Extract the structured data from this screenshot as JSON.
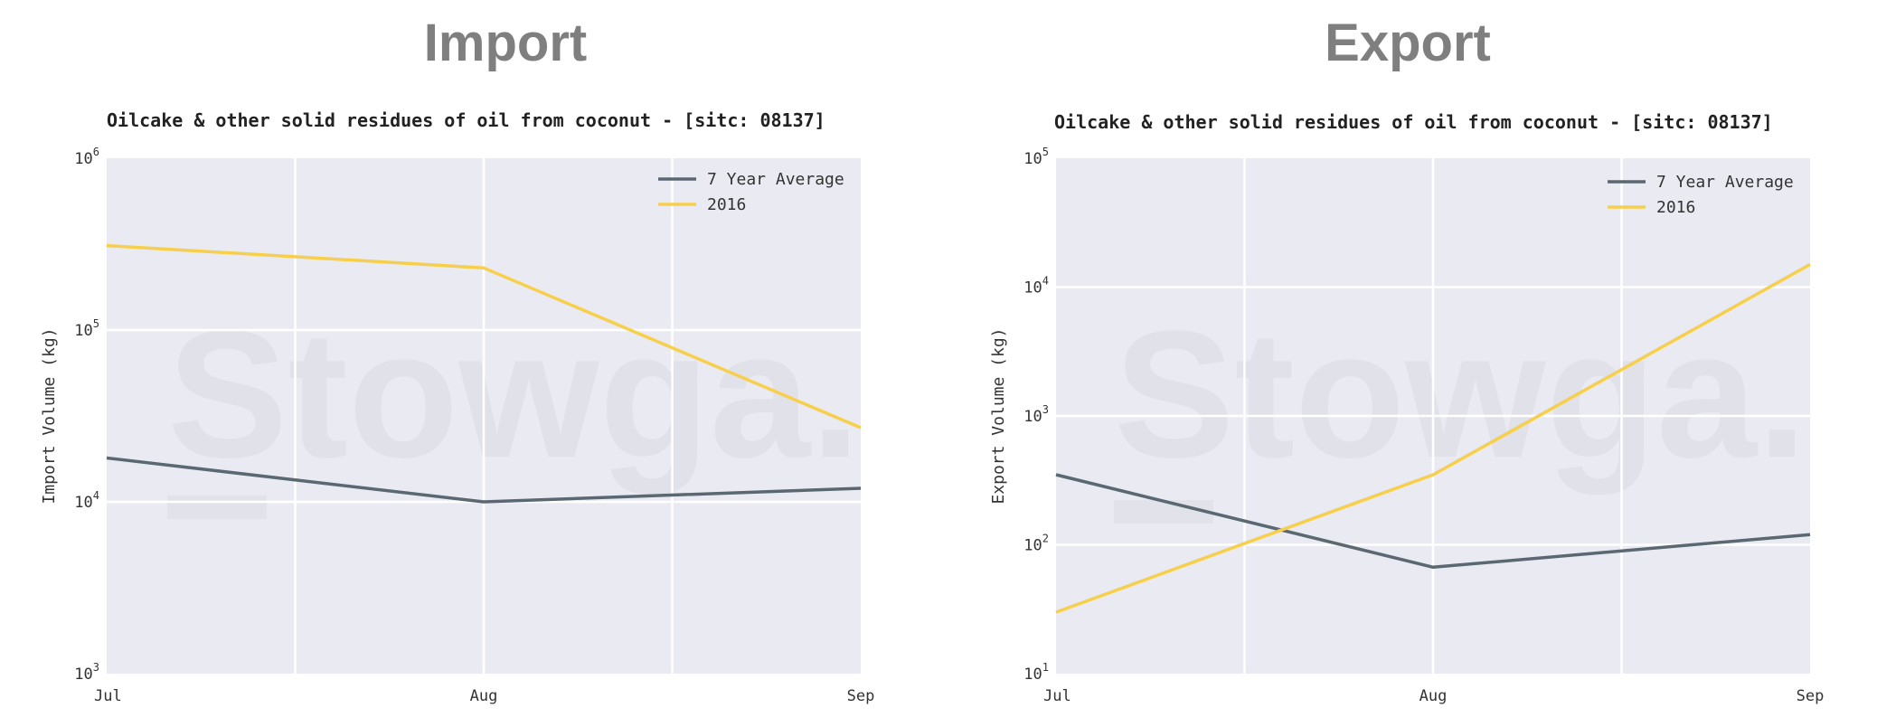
{
  "headings": {
    "import": "Import",
    "export": "Export"
  },
  "watermark": "Stowga.",
  "colors": {
    "background": "#eaeaf2",
    "grid": "#ffffff",
    "avg": "#5a6872",
    "y2016": "#f7cf4b"
  },
  "chart_data": [
    {
      "type": "line",
      "title": "Oilcake & other solid residues of oil from coconut - [sitc: 08137]",
      "xlabel": "",
      "ylabel": "Import Volume (kg)",
      "categories": [
        "Jul",
        "Aug",
        "Sep"
      ],
      "yscale": "log",
      "ylim": [
        1000,
        1000000
      ],
      "yticks": [
        {
          "base": "10",
          "exp": "3",
          "value": 1000
        },
        {
          "base": "10",
          "exp": "4",
          "value": 10000
        },
        {
          "base": "10",
          "exp": "5",
          "value": 100000
        },
        {
          "base": "10",
          "exp": "6",
          "value": 1000000
        }
      ],
      "grid": true,
      "legend": "top-right",
      "series": [
        {
          "name": "7 Year Average",
          "color": "#5a6872",
          "values": [
            18000,
            10000,
            12000
          ]
        },
        {
          "name": "2016",
          "color": "#f7cf4b",
          "values": [
            310000,
            230000,
            27000
          ]
        }
      ]
    },
    {
      "type": "line",
      "title": "Oilcake & other solid residues of oil from coconut - [sitc: 08137]",
      "xlabel": "",
      "ylabel": "Export Volume (kg)",
      "categories": [
        "Jul",
        "Aug",
        "Sep"
      ],
      "yscale": "log",
      "ylim": [
        10,
        100000
      ],
      "yticks": [
        {
          "base": "10",
          "exp": "1",
          "value": 10
        },
        {
          "base": "10",
          "exp": "2",
          "value": 100
        },
        {
          "base": "10",
          "exp": "3",
          "value": 1000
        },
        {
          "base": "10",
          "exp": "4",
          "value": 10000
        },
        {
          "base": "10",
          "exp": "5",
          "value": 100000
        }
      ],
      "grid": true,
      "legend": "top-right",
      "series": [
        {
          "name": "7 Year Average",
          "color": "#5a6872",
          "values": [
            350,
            67,
            120
          ]
        },
        {
          "name": "2016",
          "color": "#f7cf4b",
          "values": [
            30,
            350,
            15000
          ]
        }
      ]
    }
  ]
}
